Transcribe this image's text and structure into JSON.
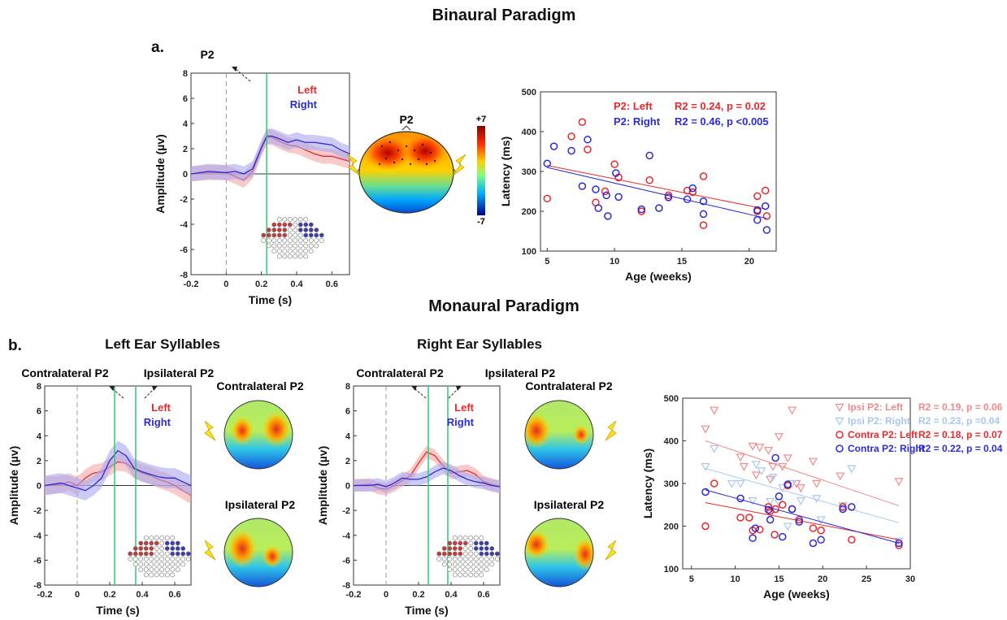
{
  "sections": {
    "binaural_title": "Binaural Paradigm",
    "monaural_title": "Monaural Paradigm",
    "panel_a": "a.",
    "panel_b": "b."
  },
  "colors": {
    "left": "#e8282b",
    "right": "#2b2bd6",
    "left_band": "#f4a6a6",
    "right_band": "#a9a9f0",
    "marker": "#2ecc71",
    "ipsi_left": "#f08a8a",
    "ipsi_right": "#a7c8ee"
  },
  "topomaps": {
    "a_label": "P2",
    "a_colorbar_max": "+7",
    "a_colorbar_min": "-7",
    "b_left_contra": "Contralateral P2",
    "b_left_ipsi": "Ipsilateral P2",
    "b_right_contra": "Contralateral P2",
    "b_right_ipsi": "Ipsilateral P2"
  },
  "chart_data": [
    {
      "id": "erp_binaural",
      "type": "line",
      "xlabel": "Time (s)",
      "ylabel": "Amplitude (µv)",
      "xlim": [
        -0.2,
        0.7
      ],
      "ylim": [
        -8,
        8
      ],
      "xticks": [
        "-0.2",
        "0",
        "0.2",
        "0.4",
        "0.6"
      ],
      "yticks": [
        "8",
        "6",
        "4",
        "2",
        "0",
        "-2",
        "-4",
        "-6",
        "-8"
      ],
      "legend": [
        "Left",
        "Right"
      ],
      "annotations": [
        "P2"
      ],
      "markers": [
        0.23
      ],
      "series": [
        {
          "name": "Left",
          "x": [
            -0.2,
            -0.1,
            0,
            0.05,
            0.1,
            0.15,
            0.2,
            0.23,
            0.26,
            0.3,
            0.35,
            0.4,
            0.45,
            0.5,
            0.55,
            0.6,
            0.65,
            0.7
          ],
          "y": [
            0,
            0.1,
            0.1,
            -0.2,
            -0.5,
            0.2,
            2.0,
            2.9,
            2.9,
            2.6,
            2.3,
            2.2,
            1.9,
            1.6,
            1.4,
            1.4,
            1.2,
            1.0
          ],
          "band": 0.6
        },
        {
          "name": "Right",
          "x": [
            -0.2,
            -0.1,
            0,
            0.05,
            0.1,
            0.15,
            0.2,
            0.23,
            0.26,
            0.3,
            0.35,
            0.4,
            0.45,
            0.5,
            0.55,
            0.6,
            0.65,
            0.7
          ],
          "y": [
            0,
            0.2,
            0.1,
            0.2,
            0.0,
            0.4,
            2.1,
            3.0,
            3.0,
            2.8,
            2.5,
            2.7,
            2.5,
            2.5,
            2.4,
            2.3,
            1.9,
            1.6
          ],
          "band": 0.6
        }
      ]
    },
    {
      "id": "scatter_binaural",
      "type": "scatter",
      "xlabel": "Age (weeks)",
      "ylabel": "Latency (ms)",
      "xlim": [
        4.5,
        22
      ],
      "ylim": [
        100,
        500
      ],
      "xticks": [
        5,
        10,
        15,
        20
      ],
      "yticks": [
        100,
        200,
        300,
        400,
        500
      ],
      "series": [
        {
          "name": "P2: Left",
          "stat": "R2 = 0.24, p = 0.02",
          "points": [
            [
              5,
              232
            ],
            [
              6.8,
              388
            ],
            [
              7.6,
              424
            ],
            [
              8,
              355
            ],
            [
              8.6,
              222
            ],
            [
              9.3,
              250
            ],
            [
              10,
              318
            ],
            [
              10.3,
              285
            ],
            [
              12,
              200
            ],
            [
              12.6,
              278
            ],
            [
              14,
              240
            ],
            [
              15.4,
              252
            ],
            [
              15.8,
              248
            ],
            [
              16.6,
              288
            ],
            [
              16.6,
              165
            ],
            [
              20.6,
              238
            ],
            [
              21.2,
              252
            ],
            [
              21.3,
              188
            ],
            [
              20.6,
              200
            ]
          ],
          "fit": [
            [
              5,
              315
            ],
            [
              21.3,
              205
            ]
          ]
        },
        {
          "name": "P2: Right",
          "stat": "R2 = 0.46,  p <0.005",
          "points": [
            [
              5,
              320
            ],
            [
              5.5,
              363
            ],
            [
              6.8,
              352
            ],
            [
              7.6,
              263
            ],
            [
              8,
              380
            ],
            [
              8.6,
              255
            ],
            [
              8.8,
              208
            ],
            [
              9.4,
              240
            ],
            [
              9.5,
              188
            ],
            [
              10.1,
              296
            ],
            [
              10.3,
              236
            ],
            [
              12,
              205
            ],
            [
              12.6,
              340
            ],
            [
              13.3,
              208
            ],
            [
              14,
              235
            ],
            [
              15.4,
              230
            ],
            [
              15.8,
              258
            ],
            [
              16.6,
              225
            ],
            [
              16.6,
              193
            ],
            [
              20.6,
              178
            ],
            [
              21.2,
              213
            ],
            [
              21.3,
              153
            ],
            [
              20.6,
              203
            ]
          ],
          "fit": [
            [
              5,
              310
            ],
            [
              21.3,
              182
            ]
          ]
        }
      ]
    },
    {
      "id": "erp_left_ear",
      "type": "line",
      "title": "Left Ear Syllables",
      "xlabel": "Time (s)",
      "ylabel": "Amplitude (µv)",
      "xlim": [
        -0.2,
        0.7
      ],
      "ylim": [
        -8,
        8
      ],
      "xticks": [
        "-0.2",
        "0",
        "0.2",
        "0.4",
        "0.6"
      ],
      "yticks": [
        "8",
        "6",
        "4",
        "2",
        "0",
        "-2",
        "-4",
        "-6",
        "-8"
      ],
      "legend": [
        "Left",
        "Right"
      ],
      "annotations": [
        "Contralateral P2",
        "Ipsilateral P2"
      ],
      "markers": [
        0.23,
        0.36
      ],
      "series": [
        {
          "name": "Left",
          "x": [
            -0.2,
            -0.1,
            -0.05,
            0,
            0.05,
            0.1,
            0.15,
            0.2,
            0.25,
            0.3,
            0.35,
            0.4,
            0.45,
            0.5,
            0.55,
            0.6,
            0.65,
            0.7
          ],
          "y": [
            0,
            0.1,
            0.3,
            0.0,
            0.6,
            1.0,
            1.1,
            1.5,
            1.9,
            1.8,
            1.3,
            1.0,
            0.8,
            0.5,
            0.3,
            0.0,
            -0.4,
            -0.8
          ],
          "band": 0.7
        },
        {
          "name": "Right",
          "x": [
            -0.2,
            -0.1,
            -0.05,
            0,
            0.05,
            0.1,
            0.15,
            0.2,
            0.25,
            0.3,
            0.35,
            0.4,
            0.45,
            0.5,
            0.55,
            0.6,
            0.65,
            0.7
          ],
          "y": [
            0,
            0.2,
            0.0,
            -0.2,
            -0.4,
            0.0,
            0.6,
            2.0,
            2.8,
            2.4,
            1.4,
            1.1,
            0.9,
            0.7,
            0.6,
            0.6,
            0.3,
            0.0
          ],
          "band": 0.8
        }
      ]
    },
    {
      "id": "erp_right_ear",
      "type": "line",
      "title": "Right Ear Syllables",
      "xlabel": "Time (s)",
      "ylabel": "Amplitude (µv)",
      "xlim": [
        -0.2,
        0.7
      ],
      "ylim": [
        -8,
        8
      ],
      "xticks": [
        "-0.2",
        "0",
        "0.2",
        "0.4",
        "0.6"
      ],
      "yticks": [
        "8",
        "6",
        "4",
        "2",
        "0",
        "-2",
        "-4",
        "-6",
        "-8"
      ],
      "legend": [
        "Left",
        "Right"
      ],
      "annotations": [
        "Contralateral P2",
        "Ipsilateral P2"
      ],
      "markers": [
        0.26,
        0.38
      ],
      "series": [
        {
          "name": "Left",
          "x": [
            -0.2,
            -0.1,
            -0.05,
            0,
            0.05,
            0.1,
            0.15,
            0.2,
            0.25,
            0.3,
            0.35,
            0.4,
            0.45,
            0.5,
            0.55,
            0.6,
            0.65,
            0.7
          ],
          "y": [
            0,
            0.1,
            -0.2,
            -0.3,
            0.0,
            0.4,
            0.8,
            1.8,
            2.7,
            2.4,
            1.6,
            1.0,
            1.1,
            1.2,
            0.9,
            0.3,
            0.1,
            -0.1
          ],
          "band": 0.5
        },
        {
          "name": "Right",
          "x": [
            -0.2,
            -0.1,
            -0.05,
            0,
            0.05,
            0.1,
            0.15,
            0.2,
            0.25,
            0.3,
            0.35,
            0.4,
            0.45,
            0.5,
            0.55,
            0.6,
            0.65,
            0.7
          ],
          "y": [
            0,
            0.0,
            0.1,
            -0.1,
            0.2,
            0.6,
            0.5,
            0.5,
            0.7,
            1.1,
            1.4,
            1.2,
            0.8,
            0.5,
            0.3,
            0.2,
            0.0,
            -0.1
          ],
          "band": 0.5
        }
      ]
    },
    {
      "id": "scatter_monaural",
      "type": "scatter",
      "xlabel": "Age (weeks)",
      "ylabel": "Latency (ms)",
      "xlim": [
        4,
        30
      ],
      "ylim": [
        100,
        500
      ],
      "xticks": [
        5,
        10,
        15,
        20,
        25,
        30
      ],
      "yticks": [
        100,
        200,
        300,
        400,
        500
      ],
      "series": [
        {
          "name": "Ipsi P2: Left",
          "stat": "R2 = 0.19, p = 0.06",
          "marker": "triangle",
          "points": [
            [
              6.6,
              428
            ],
            [
              7.6,
              472
            ],
            [
              10.6,
              362
            ],
            [
              11,
              340
            ],
            [
              12,
              388
            ],
            [
              12.4,
              320
            ],
            [
              12.8,
              385
            ],
            [
              13.8,
              378
            ],
            [
              14,
              310
            ],
            [
              14.3,
              340
            ],
            [
              15,
              410
            ],
            [
              15.4,
              340
            ],
            [
              16,
              360
            ],
            [
              16.5,
              472
            ],
            [
              17,
              300
            ],
            [
              17.5,
              290
            ],
            [
              18.9,
              352
            ],
            [
              19.3,
              300
            ],
            [
              22,
              318
            ],
            [
              22.3,
              248
            ],
            [
              28.7,
              305
            ]
          ],
          "fit": [
            [
              6.6,
              400
            ],
            [
              28.7,
              248
            ]
          ]
        },
        {
          "name": "Ipsi P2: Right",
          "stat": "R2 = 0.23, p =0.04",
          "marker": "triangle",
          "points": [
            [
              6.6,
              340
            ],
            [
              7.6,
              382
            ],
            [
              9.6,
              300
            ],
            [
              10.6,
              300
            ],
            [
              12,
              260
            ],
            [
              12.4,
              345
            ],
            [
              13,
              330
            ],
            [
              14,
              258
            ],
            [
              14.3,
              315
            ],
            [
              15,
              255
            ],
            [
              15.4,
              290
            ],
            [
              16,
              200
            ],
            [
              16.5,
              300
            ],
            [
              17.5,
              260
            ],
            [
              19.3,
              265
            ],
            [
              19.8,
              215
            ],
            [
              22.3,
              248
            ],
            [
              23.3,
              335
            ],
            [
              28.7,
              165
            ]
          ],
          "fit": [
            [
              6.6,
              335
            ],
            [
              28.7,
              208
            ]
          ]
        },
        {
          "name": "Contra P2: Left",
          "stat": "R2 = 0.18, p = 0.07",
          "marker": "circle",
          "points": [
            [
              6.6,
              200
            ],
            [
              7.6,
              300
            ],
            [
              10.6,
              220
            ],
            [
              11.6,
              220
            ],
            [
              12,
              190
            ],
            [
              12.8,
              192
            ],
            [
              13.8,
              245
            ],
            [
              14,
              235
            ],
            [
              14.5,
              180
            ],
            [
              14.6,
              240
            ],
            [
              15.4,
              250
            ],
            [
              16,
              295
            ],
            [
              16.5,
              240
            ],
            [
              17.3,
              215
            ],
            [
              18.9,
              195
            ],
            [
              19.8,
              190
            ],
            [
              22.3,
              245
            ],
            [
              23.3,
              168
            ],
            [
              28.7,
              155
            ]
          ],
          "fit": [
            [
              6.6,
              255
            ],
            [
              28.7,
              168
            ]
          ]
        },
        {
          "name": "Contra P2: Right",
          "stat": "R2 = 0.22,  p = 0.04",
          "marker": "circle",
          "points": [
            [
              6.6,
              280
            ],
            [
              10.6,
              265
            ],
            [
              12,
              172
            ],
            [
              12.3,
              195
            ],
            [
              13.8,
              238
            ],
            [
              14,
              215
            ],
            [
              14.6,
              360
            ],
            [
              15,
              270
            ],
            [
              15.4,
              175
            ],
            [
              16,
              298
            ],
            [
              16.5,
              240
            ],
            [
              17.3,
              210
            ],
            [
              18.9,
              160
            ],
            [
              19.8,
              168
            ],
            [
              22.3,
              240
            ],
            [
              23.3,
              245
            ],
            [
              28.7,
              160
            ]
          ],
          "fit": [
            [
              6.6,
              285
            ],
            [
              28.7,
              160
            ]
          ]
        }
      ]
    }
  ]
}
